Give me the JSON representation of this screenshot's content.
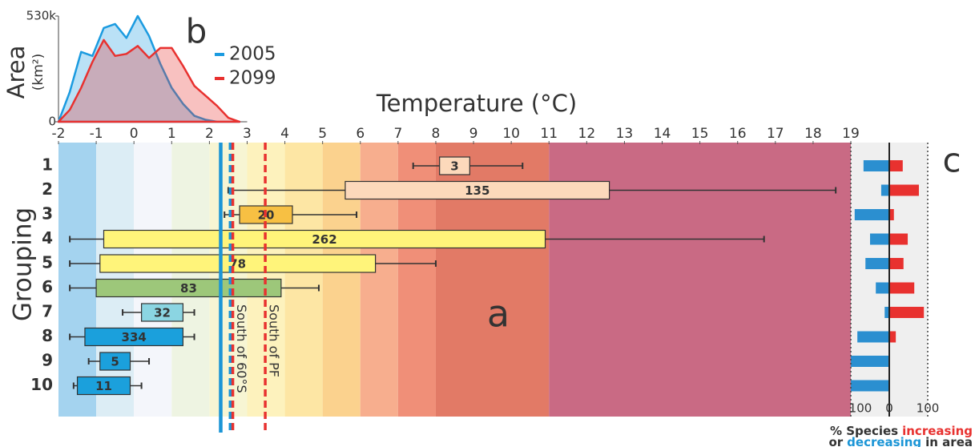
{
  "chart_data": [
    {
      "type": "boxplot",
      "panel": "a",
      "xlabel": "Temperature (°C)",
      "ylabel": "Grouping",
      "xlim": [
        -2,
        19
      ],
      "xticks": [
        -2,
        -1,
        0,
        1,
        2,
        3,
        4,
        5,
        6,
        7,
        8,
        9,
        10,
        11,
        12,
        13,
        14,
        15,
        16,
        17,
        18,
        19
      ],
      "categories": [
        "1",
        "2",
        "3",
        "4",
        "5",
        "6",
        "7",
        "8",
        "9",
        "10"
      ],
      "whisker_low": [
        7.4,
        2.5,
        2.4,
        -1.7,
        -1.7,
        -1.7,
        -0.3,
        -1.7,
        -1.2,
        -1.6
      ],
      "box_low": [
        8.1,
        5.6,
        2.8,
        -0.8,
        -0.9,
        -1.0,
        0.2,
        -1.3,
        -0.9,
        -1.5
      ],
      "box_high": [
        8.9,
        12.6,
        4.2,
        10.9,
        6.4,
        3.9,
        1.3,
        1.3,
        -0.1,
        -0.1
      ],
      "whisker_high": [
        10.3,
        18.6,
        5.9,
        16.7,
        8.0,
        4.9,
        1.6,
        1.6,
        0.4,
        0.2
      ],
      "counts": [
        3,
        135,
        20,
        262,
        78,
        83,
        32,
        334,
        5,
        11
      ],
      "colors": [
        "#fcd9bb",
        "#fcd9bb",
        "#f7c043",
        "#fff47a",
        "#fff47a",
        "#9dc77a",
        "#8bd5e2",
        "#1ba0dc",
        "#1ba0dc",
        "#1ba0dc"
      ],
      "bands": {
        "starts": [
          -2,
          -1,
          0,
          1,
          2,
          3,
          4,
          5,
          6,
          7,
          8,
          11
        ],
        "ends": [
          -1,
          0,
          1,
          2,
          3,
          4,
          5,
          6,
          7,
          8,
          11,
          19
        ],
        "colors": [
          "#a4d3ef",
          "#dcedf5",
          "#f4f6fb",
          "#eef4e2",
          "#f7f5d3",
          "#fdf2bd",
          "#fde6a4",
          "#fbd28e",
          "#f7ae8e",
          "#f08f78",
          "#e27a66",
          "#c96a84"
        ]
      },
      "reference_lines": [
        {
          "value": 2.3,
          "color": "#1b95d6",
          "dashed": false
        },
        {
          "value": 2.55,
          "color": "#1b95d6",
          "dashed": true
        },
        {
          "value": 2.62,
          "color": "#e8312f",
          "dashed": true,
          "label": "South of 60°S"
        },
        {
          "value": 3.48,
          "color": "#e8312f",
          "dashed": true,
          "label": "South of PF"
        }
      ]
    },
    {
      "type": "area",
      "panel": "b",
      "ylabel": "Area",
      "ylabel_unit": "(km²)",
      "xlim": [
        -2,
        3
      ],
      "ylim": [
        0,
        530000
      ],
      "yticks": [
        0,
        {
          "value": 530000,
          "label": "530k"
        }
      ],
      "x": [
        -2,
        -1.7,
        -1.4,
        -1.1,
        -0.8,
        -0.5,
        -0.2,
        0.1,
        0.4,
        0.7,
        1.0,
        1.3,
        1.6,
        1.9,
        2.2,
        2.5,
        2.8
      ],
      "series": [
        {
          "name": "2005",
          "color": "#1b9be0",
          "values": [
            0,
            150000,
            350000,
            330000,
            470000,
            490000,
            420000,
            530000,
            430000,
            290000,
            170000,
            90000,
            30000,
            10000,
            0,
            0,
            0
          ]
        },
        {
          "name": "2099",
          "color": "#e8312f",
          "values": [
            0,
            60000,
            170000,
            300000,
            410000,
            330000,
            340000,
            380000,
            320000,
            370000,
            370000,
            280000,
            180000,
            130000,
            80000,
            20000,
            0
          ]
        }
      ]
    },
    {
      "type": "bar",
      "panel": "c",
      "xlim": [
        -100,
        100
      ],
      "xticks": [
        {
          "value": -100,
          "label": "100"
        },
        0,
        100
      ],
      "xlabel_lines": [
        [
          {
            "text": "% Species",
            "color": "#333333"
          },
          {
            "text": "increasing",
            "color": "#e8312f"
          }
        ],
        [
          {
            "text": "or",
            "color": "#333333"
          },
          {
            "text": "decreasing",
            "color": "#1b95d6"
          },
          {
            "text": "in area",
            "color": "#333333"
          }
        ]
      ],
      "series": [
        {
          "color": "#2b8fd0",
          "values": [
            -67,
            -21,
            -90,
            -50,
            -62,
            -35,
            -12,
            -83,
            -100,
            -100
          ]
        },
        {
          "color": "#e8312f",
          "values": [
            35,
            77,
            12,
            48,
            37,
            65,
            90,
            17,
            0,
            0
          ]
        }
      ]
    }
  ]
}
